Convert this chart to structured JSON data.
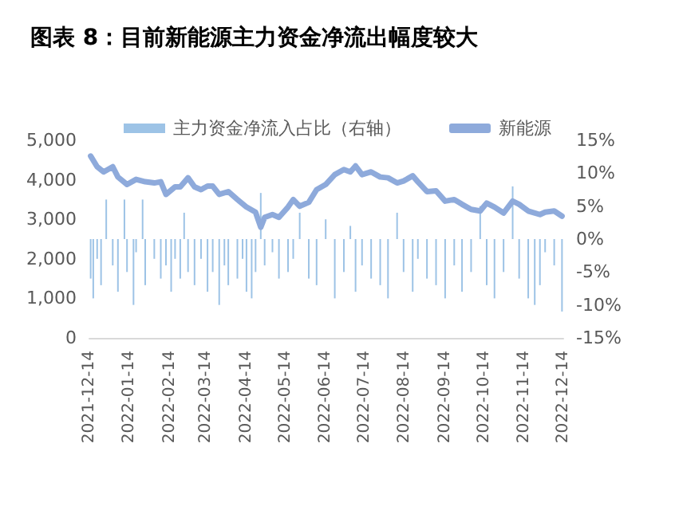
{
  "chart_data": {
    "type": "line",
    "title": "图表 8：目前新能源主力资金净流出幅度较大",
    "xlim": [
      "2021-12-14",
      "2022-12-14"
    ],
    "xticks": [
      "2021-12-14",
      "2022-01-14",
      "2022-02-14",
      "2022-03-14",
      "2022-04-14",
      "2022-05-14",
      "2022-06-14",
      "2022-07-14",
      "2022-08-14",
      "2022-09-14",
      "2022-10-14",
      "2022-11-14",
      "2022-12-14"
    ],
    "ylim": [
      0,
      5000
    ],
    "yticks": [
      0,
      {
        "value": 1000,
        "label": "1,000"
      },
      {
        "value": 2000,
        "label": "2,000"
      },
      {
        "value": 3000,
        "label": "3,000"
      },
      {
        "value": 4000,
        "label": "4,000"
      },
      {
        "value": 5000,
        "label": "5,000"
      }
    ],
    "y2lim": [
      -15,
      15
    ],
    "y2ticks": [
      {
        "value": -15,
        "label": "-15%"
      },
      {
        "value": -10,
        "label": "-10%"
      },
      {
        "value": -5,
        "label": "-5%"
      },
      {
        "value": 0,
        "label": "0%"
      },
      {
        "value": 5,
        "label": "5%"
      },
      {
        "value": 10,
        "label": "10%"
      },
      {
        "value": 15,
        "label": "15%"
      }
    ],
    "grid": false,
    "legend": "top",
    "marker": "none",
    "series": [
      {
        "name": "主力资金净流入占比（右轴）",
        "type": "bar",
        "axis": "y2",
        "color": "#9dc3e6",
        "x": [
          "2021-12-15",
          "2021-12-17",
          "2021-12-20",
          "2021-12-23",
          "2021-12-27",
          "2022-01-01",
          "2022-01-05",
          "2022-01-10",
          "2022-01-12",
          "2022-01-17",
          "2022-01-19",
          "2022-01-24",
          "2022-01-26",
          "2022-02-02",
          "2022-02-07",
          "2022-02-11",
          "2022-02-15",
          "2022-02-18",
          "2022-02-22",
          "2022-02-25",
          "2022-02-28",
          "2022-03-05",
          "2022-03-10",
          "2022-03-15",
          "2022-03-19",
          "2022-03-24",
          "2022-03-28",
          "2022-03-31",
          "2022-04-07",
          "2022-04-11",
          "2022-04-14",
          "2022-04-18",
          "2022-04-21",
          "2022-04-25",
          "2022-04-28",
          "2022-05-04",
          "2022-05-09",
          "2022-05-16",
          "2022-05-20",
          "2022-05-25",
          "2022-06-01",
          "2022-06-07",
          "2022-06-14",
          "2022-06-21",
          "2022-06-28",
          "2022-07-03",
          "2022-07-07",
          "2022-07-12",
          "2022-07-19",
          "2022-07-26",
          "2022-08-01",
          "2022-08-08",
          "2022-08-13",
          "2022-08-20",
          "2022-08-24",
          "2022-08-31",
          "2022-09-07",
          "2022-09-14",
          "2022-09-21",
          "2022-09-27",
          "2022-10-04",
          "2022-10-11",
          "2022-10-16",
          "2022-10-22",
          "2022-10-29",
          "2022-11-05",
          "2022-11-10",
          "2022-11-17",
          "2022-11-22",
          "2022-11-26",
          "2022-11-30",
          "2022-12-07",
          "2022-12-13"
        ],
        "values": [
          -6,
          -9,
          -3,
          -7,
          6,
          -4,
          -8,
          6,
          -5,
          -10,
          -2,
          6,
          -7,
          -3,
          -6,
          -4,
          -8,
          -3,
          -6,
          4,
          -5,
          -7,
          -3,
          -8,
          -5,
          -10,
          -4,
          -7,
          -6,
          -3,
          -8,
          -9,
          -5,
          7,
          -4,
          -2,
          -6,
          -5,
          -3,
          4,
          -6,
          -7,
          3,
          -9,
          -5,
          2,
          -8,
          -4,
          -6,
          -7,
          -9,
          4,
          -5,
          -8,
          -3,
          -6,
          -7,
          -9,
          -4,
          -8,
          -5,
          5,
          -7,
          -9,
          -5,
          8,
          -6,
          -9,
          -10,
          -7,
          -2,
          -4,
          -11
        ]
      },
      {
        "name": "新能源",
        "color": "#8eaadb",
        "x": [
          "2021-12-15",
          "2021-12-20",
          "2021-12-25",
          "2022-01-01",
          "2022-01-05",
          "2022-01-12",
          "2022-01-19",
          "2022-01-26",
          "2022-02-02",
          "2022-02-07",
          "2022-02-11",
          "2022-02-18",
          "2022-02-22",
          "2022-02-28",
          "2022-03-05",
          "2022-03-10",
          "2022-03-15",
          "2022-03-19",
          "2022-03-24",
          "2022-03-31",
          "2022-04-07",
          "2022-04-14",
          "2022-04-21",
          "2022-04-25",
          "2022-04-28",
          "2022-05-04",
          "2022-05-09",
          "2022-05-16",
          "2022-05-20",
          "2022-05-25",
          "2022-06-01",
          "2022-06-07",
          "2022-06-14",
          "2022-06-21",
          "2022-06-28",
          "2022-07-03",
          "2022-07-07",
          "2022-07-12",
          "2022-07-19",
          "2022-07-26",
          "2022-08-01",
          "2022-08-08",
          "2022-08-13",
          "2022-08-20",
          "2022-08-24",
          "2022-08-31",
          "2022-09-07",
          "2022-09-14",
          "2022-09-21",
          "2022-09-27",
          "2022-10-04",
          "2022-10-11",
          "2022-10-16",
          "2022-10-22",
          "2022-10-29",
          "2022-11-05",
          "2022-11-10",
          "2022-11-17",
          "2022-11-26",
          "2022-11-30",
          "2022-12-07",
          "2022-12-13"
        ],
        "values": [
          4600,
          4330,
          4200,
          4330,
          4070,
          3880,
          4010,
          3950,
          3920,
          3950,
          3630,
          3820,
          3820,
          4050,
          3820,
          3750,
          3840,
          3840,
          3630,
          3700,
          3500,
          3310,
          3180,
          2800,
          3050,
          3120,
          3050,
          3310,
          3500,
          3330,
          3430,
          3750,
          3880,
          4130,
          4260,
          4200,
          4350,
          4130,
          4200,
          4070,
          4050,
          3920,
          3970,
          4100,
          3950,
          3700,
          3720,
          3460,
          3500,
          3380,
          3250,
          3210,
          3410,
          3310,
          3160,
          3460,
          3380,
          3210,
          3120,
          3180,
          3210,
          3080
        ]
      }
    ]
  }
}
